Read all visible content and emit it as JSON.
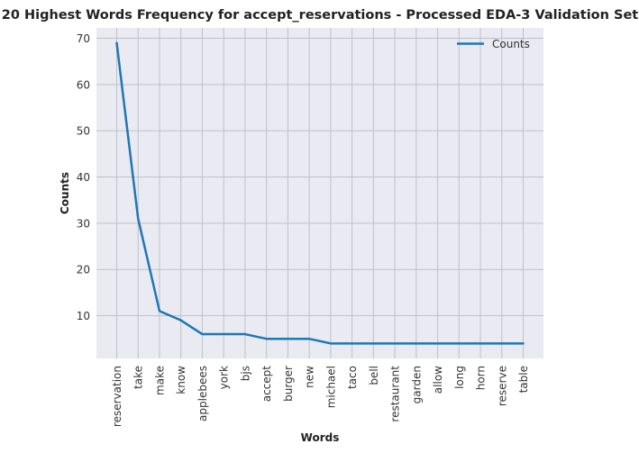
{
  "chart_data": {
    "type": "line",
    "title": "20 Highest Words Frequency for accept_reservations - Processed EDA-3 Validation Set",
    "xlabel": "Words",
    "ylabel": "Counts",
    "categories": [
      "reservation",
      "take",
      "make",
      "know",
      "applebees",
      "york",
      "bjs",
      "accept",
      "burger",
      "new",
      "michael",
      "taco",
      "bell",
      "restaurant",
      "garden",
      "allow",
      "long",
      "horn",
      "reserve",
      "table"
    ],
    "series": [
      {
        "name": "Counts",
        "values": [
          69,
          31,
          11,
          9,
          6,
          6,
          6,
          5,
          5,
          5,
          4,
          4,
          4,
          4,
          4,
          4,
          4,
          4,
          4,
          4
        ],
        "color": "#1f77b4"
      }
    ],
    "ylim": [
      0.75,
      72.25
    ],
    "yticks": [
      10,
      20,
      30,
      40,
      50,
      60,
      70
    ],
    "grid": true,
    "legend_position": "top-right",
    "background_color": "#eaeaf2",
    "grid_color": "#c0c0c8"
  }
}
